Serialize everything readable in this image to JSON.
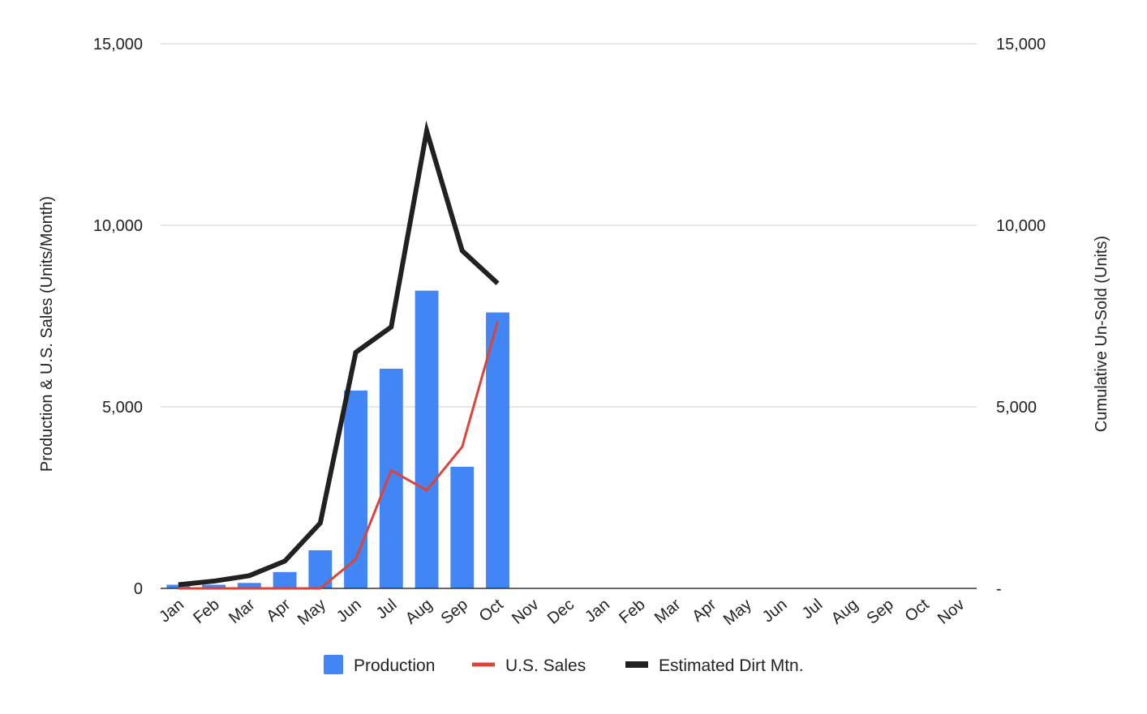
{
  "chart_data": {
    "type": "bar",
    "categories": [
      "Jan",
      "Feb",
      "Mar",
      "Apr",
      "May",
      "Jun",
      "Jul",
      "Aug",
      "Sep",
      "Oct",
      "Nov",
      "Dec",
      "Jan",
      "Feb",
      "Mar",
      "Apr",
      "May",
      "Jun",
      "Jul",
      "Aug",
      "Sep",
      "Oct",
      "Nov"
    ],
    "series": [
      {
        "name": "Production",
        "type": "bar",
        "axis": "left",
        "color": "#4285F4",
        "values": [
          100,
          100,
          150,
          450,
          1050,
          5450,
          6050,
          8200,
          3350,
          7600,
          null,
          null,
          null,
          null,
          null,
          null,
          null,
          null,
          null,
          null,
          null,
          null,
          null
        ]
      },
      {
        "name": "U.S. Sales",
        "type": "line",
        "axis": "left",
        "color": "#DB4437",
        "values": [
          0,
          0,
          0,
          0,
          0,
          800,
          3250,
          2700,
          3900,
          7350,
          null,
          null,
          null,
          null,
          null,
          null,
          null,
          null,
          null,
          null,
          null,
          null,
          null
        ]
      },
      {
        "name": "Estimated Dirt Mtn.",
        "type": "line",
        "axis": "right",
        "color": "#212121",
        "values": [
          100,
          200,
          350,
          750,
          1800,
          6500,
          7200,
          12600,
          9300,
          8400,
          null,
          null,
          null,
          null,
          null,
          null,
          null,
          null,
          null,
          null,
          null,
          null,
          null
        ]
      }
    ],
    "ylabel": "Production & U.S. Sales (Units/Month)",
    "y2label": "Cumulative Un-Sold (Units)",
    "ylim": [
      0,
      15000
    ],
    "y2lim": [
      0,
      15000
    ],
    "y_ticks": [
      "0",
      "5,000",
      "10,000",
      "15,000"
    ],
    "y2_ticks": [
      "-",
      "5,000",
      "10,000",
      "15,000"
    ],
    "grid": true,
    "legend_position": "bottom"
  }
}
